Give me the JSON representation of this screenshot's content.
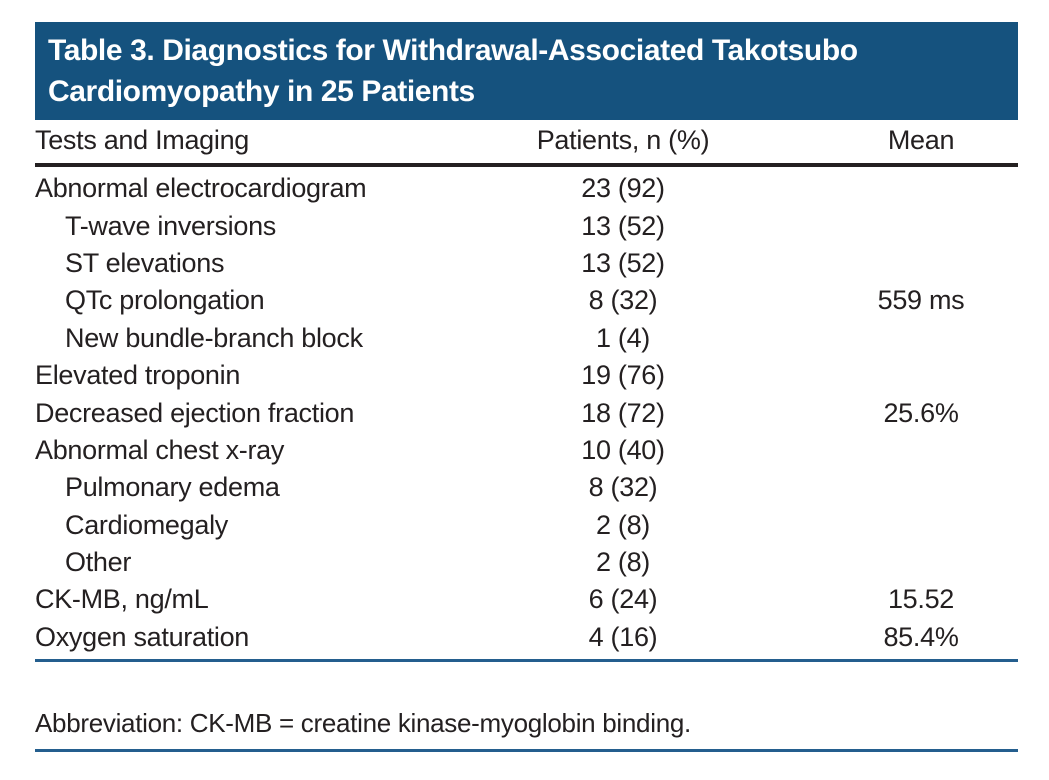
{
  "title": {
    "text": "Table 3. Diagnostics for Withdrawal-Associated Takotsubo Cardiomyopathy in 25 Patients"
  },
  "table": {
    "columns": [
      "Tests and Imaging",
      "Patients, n (%)",
      "Mean"
    ],
    "rows": [
      {
        "label": "Abnormal electrocardiogram",
        "indent": false,
        "patients": "23 (92)",
        "mean": ""
      },
      {
        "label": "T-wave inversions",
        "indent": true,
        "patients": "13 (52)",
        "mean": ""
      },
      {
        "label": "ST elevations",
        "indent": true,
        "patients": "13 (52)",
        "mean": ""
      },
      {
        "label": "QTc prolongation",
        "indent": true,
        "patients": "8 (32)",
        "mean": "559 ms"
      },
      {
        "label": "New bundle-branch block",
        "indent": true,
        "patients": "1 (4)",
        "mean": ""
      },
      {
        "label": "Elevated troponin",
        "indent": false,
        "patients": "19 (76)",
        "mean": ""
      },
      {
        "label": "Decreased ejection fraction",
        "indent": false,
        "patients": "18 (72)",
        "mean": "25.6%"
      },
      {
        "label": "Abnormal chest x-ray",
        "indent": false,
        "patients": "10 (40)",
        "mean": ""
      },
      {
        "label": "Pulmonary edema",
        "indent": true,
        "patients": "8 (32)",
        "mean": ""
      },
      {
        "label": "Cardiomegaly",
        "indent": true,
        "patients": "2 (8)",
        "mean": ""
      },
      {
        "label": "Other",
        "indent": true,
        "patients": "2 (8)",
        "mean": ""
      },
      {
        "label": "CK-MB, ng/mL",
        "indent": false,
        "patients": "6 (24)",
        "mean": "15.52"
      },
      {
        "label": "Oxygen saturation",
        "indent": false,
        "patients": "4 (16)",
        "mean": "85.4%"
      }
    ]
  },
  "footnote": {
    "text": "Abbreviation: CK-MB = creatine kinase-myoglobin binding."
  },
  "colors": {
    "title_bg": "#15527e",
    "rule_blue": "#245e8e",
    "rule_black": "#242021",
    "text": "#242021",
    "title_text": "#ffffff"
  }
}
